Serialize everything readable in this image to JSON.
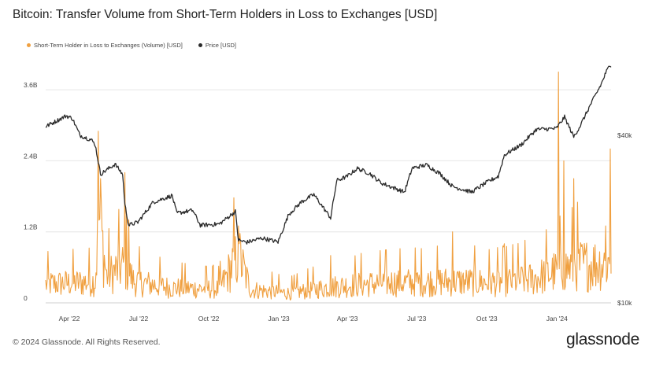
{
  "title": "Bitcoin: Transfer Volume from Short-Term Holders in Loss to Exchanges [USD]",
  "footer": "© 2024 Glassnode. All Rights Reserved.",
  "logo_text": "glassnode",
  "colors": {
    "volume": "#f0a040",
    "price": "#2a2a2a",
    "grid": "#e6e6e6"
  },
  "chart_data": {
    "type": "line",
    "title": "Bitcoin: Transfer Volume from Short-Term Holders in Loss to Exchanges [USD]",
    "legend_position": "top-left",
    "grid": true,
    "x_range": [
      "2022-03-01",
      "2024-03-12"
    ],
    "x_ticks": [
      {
        "date": "2022-04-01",
        "label": "Apr '22"
      },
      {
        "date": "2022-07-01",
        "label": "Jul '22"
      },
      {
        "date": "2022-10-01",
        "label": "Oct '22"
      },
      {
        "date": "2023-01-01",
        "label": "Jan '23"
      },
      {
        "date": "2023-04-01",
        "label": "Apr '23"
      },
      {
        "date": "2023-07-01",
        "label": "Jul '23"
      },
      {
        "date": "2023-10-01",
        "label": "Oct '23"
      },
      {
        "date": "2024-01-01",
        "label": "Jan '24"
      }
    ],
    "y_left": {
      "min": 0,
      "max": 4000000000,
      "ticks": [
        {
          "value": 0,
          "label": "0"
        },
        {
          "value": 1200000000,
          "label": "1.2B"
        },
        {
          "value": 2400000000,
          "label": "2.4B"
        },
        {
          "value": 3600000000,
          "label": "3.6B"
        }
      ]
    },
    "y_right": {
      "scale": "log",
      "ticks": [
        {
          "value": 10000,
          "label": "$10k"
        },
        {
          "value": 40000,
          "label": "$40k"
        }
      ]
    },
    "series": [
      {
        "name": "Short-Term Holder in Loss to Exchanges (Volume) [USD]",
        "axis": "left",
        "color": "#f0a040",
        "baseline": [
          [
            "2022-03-01",
            350000000
          ],
          [
            "2022-04-15",
            380000000
          ],
          [
            "2022-05-05",
            400000000
          ],
          [
            "2022-05-10",
            1600000000
          ],
          [
            "2022-05-20",
            500000000
          ],
          [
            "2022-06-12",
            700000000
          ],
          [
            "2022-06-25",
            400000000
          ],
          [
            "2022-08-15",
            280000000
          ],
          [
            "2022-10-15",
            260000000
          ],
          [
            "2022-11-09",
            900000000
          ],
          [
            "2022-11-25",
            250000000
          ],
          [
            "2023-01-15",
            180000000
          ],
          [
            "2023-03-10",
            300000000
          ],
          [
            "2023-04-20",
            350000000
          ],
          [
            "2023-06-01",
            380000000
          ],
          [
            "2023-08-15",
            400000000
          ],
          [
            "2023-10-15",
            380000000
          ],
          [
            "2023-12-01",
            450000000
          ],
          [
            "2024-01-03",
            600000000
          ],
          [
            "2024-01-25",
            700000000
          ],
          [
            "2024-03-12",
            750000000
          ]
        ],
        "spikes": [
          [
            "2022-05-09",
            2900000000
          ],
          [
            "2022-05-12",
            2100000000
          ],
          [
            "2022-06-13",
            2200000000
          ],
          [
            "2022-06-18",
            1400000000
          ],
          [
            "2022-11-09",
            1300000000
          ],
          [
            "2022-11-10",
            1000000000
          ],
          [
            "2023-03-10",
            800000000
          ],
          [
            "2023-08-17",
            1200000000
          ],
          [
            "2023-10-24",
            1000000000
          ],
          [
            "2024-01-03",
            3900000000
          ],
          [
            "2024-01-10",
            2400000000
          ],
          [
            "2024-01-23",
            2100000000
          ],
          [
            "2024-03-05",
            1300000000
          ],
          [
            "2024-03-11",
            2600000000
          ]
        ]
      },
      {
        "name": "Price [USD]",
        "axis": "right",
        "color": "#2a2a2a",
        "values": [
          [
            "2022-03-01",
            43000
          ],
          [
            "2022-03-28",
            47000
          ],
          [
            "2022-04-05",
            46000
          ],
          [
            "2022-04-15",
            40000
          ],
          [
            "2022-04-30",
            38500
          ],
          [
            "2022-05-05",
            37000
          ],
          [
            "2022-05-12",
            29000
          ],
          [
            "2022-05-31",
            31500
          ],
          [
            "2022-06-10",
            29000
          ],
          [
            "2022-06-13",
            22500
          ],
          [
            "2022-06-18",
            19000
          ],
          [
            "2022-06-30",
            19500
          ],
          [
            "2022-07-20",
            23000
          ],
          [
            "2022-08-14",
            24300
          ],
          [
            "2022-08-20",
            21000
          ],
          [
            "2022-09-10",
            21500
          ],
          [
            "2022-09-20",
            19000
          ],
          [
            "2022-10-15",
            19200
          ],
          [
            "2022-11-05",
            21300
          ],
          [
            "2022-11-09",
            16800
          ],
          [
            "2022-11-20",
            16500
          ],
          [
            "2022-12-10",
            17100
          ],
          [
            "2022-12-31",
            16550
          ],
          [
            "2023-01-14",
            20800
          ],
          [
            "2023-01-31",
            23100
          ],
          [
            "2023-02-16",
            24500
          ],
          [
            "2023-03-10",
            20200
          ],
          [
            "2023-03-18",
            27500
          ],
          [
            "2023-03-31",
            28400
          ],
          [
            "2023-04-14",
            30400
          ],
          [
            "2023-04-30",
            29200
          ],
          [
            "2023-05-15",
            27000
          ],
          [
            "2023-06-15",
            25000
          ],
          [
            "2023-06-25",
            30500
          ],
          [
            "2023-07-14",
            31300
          ],
          [
            "2023-07-31",
            29200
          ],
          [
            "2023-08-17",
            26200
          ],
          [
            "2023-09-11",
            25000
          ],
          [
            "2023-09-30",
            27000
          ],
          [
            "2023-10-16",
            28500
          ],
          [
            "2023-10-24",
            34000
          ],
          [
            "2023-11-15",
            37000
          ],
          [
            "2023-12-05",
            42000
          ],
          [
            "2023-12-31",
            42300
          ],
          [
            "2024-01-11",
            46500
          ],
          [
            "2024-01-23",
            39500
          ],
          [
            "2024-01-31",
            43000
          ],
          [
            "2024-02-14",
            51500
          ],
          [
            "2024-02-28",
            61000
          ],
          [
            "2024-03-05",
            67000
          ],
          [
            "2024-03-11",
            72000
          ],
          [
            "2024-03-12",
            71500
          ]
        ]
      }
    ]
  }
}
